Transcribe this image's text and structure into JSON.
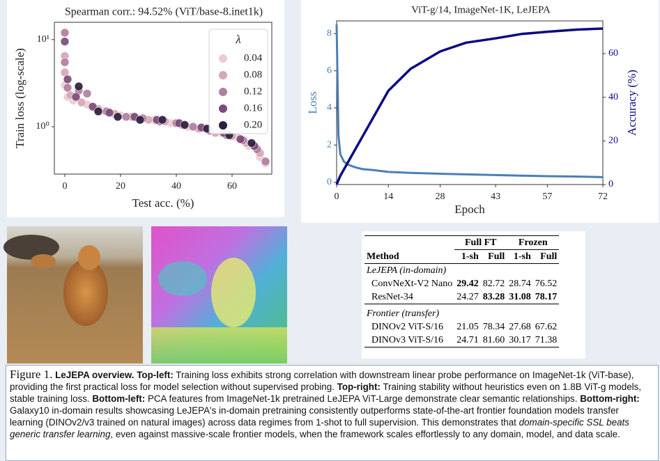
{
  "chart_data": [
    {
      "type": "scatter",
      "title": "Spearman corr.: 94.52% (ViT/base-8.inet1k)",
      "x_label": "Test acc. (%)",
      "y_label": "Train loss (log-scale)",
      "log_y": true,
      "legend_title": "λ",
      "legend": "upper right",
      "xlim": [
        -3.75,
        74.25
      ],
      "xticks": [
        0,
        20,
        40,
        60
      ],
      "ylim": [
        0.286,
        15.8
      ],
      "yticks": [
        {
          "value": 1,
          "label": "10⁰"
        },
        {
          "value": 10,
          "label": "10¹"
        }
      ],
      "series": [
        {
          "name": "0.04",
          "color": "#ecccd0",
          "x": [
            0,
            1,
            3,
            8,
            14,
            20,
            26,
            32,
            38,
            44,
            50,
            56,
            62,
            66,
            70,
            72
          ],
          "values": [
            3.0,
            2.2,
            2.0,
            1.8,
            1.5,
            1.35,
            1.25,
            1.2,
            1.1,
            1.0,
            0.95,
            0.85,
            0.75,
            0.6,
            0.45,
            0.38
          ]
        },
        {
          "name": "0.08",
          "color": "#d7a7b6",
          "x": [
            0,
            0,
            2,
            6,
            12,
            18,
            24,
            30,
            36,
            42,
            48,
            54,
            60,
            65,
            70
          ],
          "values": [
            6.5,
            4.2,
            2.3,
            1.9,
            1.6,
            1.4,
            1.3,
            1.2,
            1.15,
            1.05,
            0.95,
            0.85,
            0.78,
            0.65,
            0.5
          ]
        },
        {
          "name": "0.12",
          "color": "#b17f9f",
          "x": [
            0,
            0,
            1,
            5,
            8,
            15,
            22,
            28,
            34,
            40,
            46,
            52,
            58,
            64,
            69,
            72
          ],
          "values": [
            12,
            5.5,
            2.8,
            2.6,
            2.4,
            1.5,
            1.3,
            1.25,
            1.15,
            1.1,
            1.0,
            0.9,
            0.8,
            0.7,
            0.55,
            0.4
          ]
        },
        {
          "name": "0.16",
          "color": "#7b4b78",
          "x": [
            0,
            1,
            4,
            10,
            16,
            25,
            33,
            41,
            49,
            57,
            63,
            68
          ],
          "values": [
            9.5,
            3.5,
            2.2,
            1.7,
            1.45,
            1.3,
            1.2,
            1.1,
            0.98,
            0.85,
            0.72,
            0.6
          ]
        },
        {
          "name": "0.20",
          "color": "#2e1f3f",
          "x": [
            5,
            12,
            19,
            27,
            35,
            43,
            51,
            59,
            67
          ],
          "values": [
            2.9,
            1.5,
            1.3,
            1.2,
            1.2,
            1.05,
            0.95,
            0.8,
            0.65
          ]
        }
      ]
    },
    {
      "type": "line",
      "title": "ViT-g/14, ImageNet-1K, LeJEPA",
      "x_label": "Epoch",
      "y_label": "Loss",
      "y2_label": "Accuracy (%)",
      "xlim": [
        0,
        72
      ],
      "xticks": [
        0,
        14,
        28,
        43,
        57,
        72
      ],
      "ylim": [
        -0.13,
        8.69
      ],
      "yticks": [
        0,
        2,
        4,
        6,
        8
      ],
      "y2lim": [
        0,
        75
      ],
      "y2ticks": [
        0,
        20,
        40,
        60
      ],
      "x": [
        0,
        0.5,
        1,
        2,
        3,
        5,
        7,
        10,
        14,
        20,
        28,
        35,
        43,
        50,
        57,
        65,
        72
      ],
      "series": [
        {
          "name": "Loss",
          "color": "#4a7fb5",
          "values": [
            8.5,
            2.5,
            1.5,
            1.1,
            0.95,
            0.8,
            0.7,
            0.65,
            0.55,
            0.5,
            0.45,
            0.42,
            0.38,
            0.35,
            0.32,
            0.3,
            0.27
          ]
        },
        {
          "name": "Accuracy (%)",
          "color": "#0a0a80",
          "axis": "y2",
          "values": [
            0,
            2,
            4,
            7,
            10,
            16,
            22,
            31,
            43,
            53,
            61,
            65,
            67,
            69,
            70,
            71,
            71.5
          ]
        }
      ]
    }
  ],
  "table": {
    "groups": [
      "Full FT",
      "Frozen"
    ],
    "columns": [
      "Method",
      "1-sh",
      "Full",
      "1-sh",
      "Full"
    ],
    "sections": [
      {
        "title": "LeJEPA (in-domain)",
        "rows": [
          [
            "ConvNeXt-V2 Nano",
            "29.42",
            "82.72",
            "28.74",
            "76.52"
          ],
          [
            "ResNet-34",
            "24.27",
            "83.28",
            "31.08",
            "78.17"
          ]
        ]
      },
      {
        "title": "Frontier (transfer)",
        "rows": [
          [
            "DINOv2 ViT-S/16",
            "21.05",
            "78.34",
            "27.68",
            "67.62"
          ],
          [
            "DINOv3 ViT-S/16",
            "24.71",
            "81.60",
            "30.17",
            "71.38"
          ]
        ]
      }
    ]
  },
  "caption": [
    "Figure 1.",
    "LeJEPA overview.",
    "Top-left:",
    "Training loss exhibits strong correlation with downstream linear probe performance on ImageNet-1k (ViT-base), providing the first practical loss for model selection without supervised probing.",
    "Top-right:",
    "Training stability without heuristics even on 1.8B ViT-g models, stable training loss.",
    "Bottom-left:",
    "PCA features from ImageNet-1k pretrained LeJEPA ViT-Large demonstrate clear semantic relationships.",
    "Bottom-right:",
    "Galaxy10 in-domain results showcasing LeJEPA's in-domain pretraining consistently outperforms state-of-the-art frontier foundation models transfer learning (DINOv2/v3 trained on natural images) across data regimes from 1-shot to full supervision. This demonstrates that",
    "domain-specific SSL beats generic transfer learning",
    ", even against massive-scale frontier models, when the framework scales effortlessly to any domain, model, and data scale."
  ]
}
